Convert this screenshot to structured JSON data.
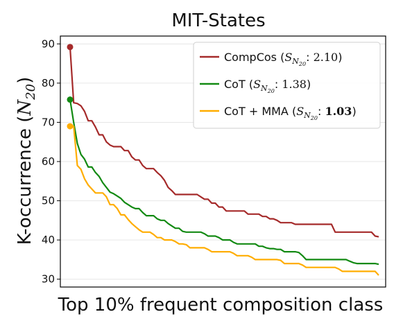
{
  "chart_data": {
    "type": "line",
    "title": "MIT-States",
    "xlabel": "Top 10% frequent composition class",
    "ylabel": "K-occurrence (N20)",
    "ylabel_main": "K-occurrence (",
    "ylabel_var": "N",
    "ylabel_sub": "20",
    "ylabel_end": ")",
    "ylim": [
      28,
      92
    ],
    "yticks": [
      30,
      40,
      50,
      60,
      70,
      80,
      90
    ],
    "grid": true,
    "legend_position": "top-right",
    "series": [
      {
        "name": "CompCos",
        "legend_prefix": "CompCos (",
        "score": "2.10",
        "score_bold": false,
        "color": "#a52a2a",
        "values": [
          89.2,
          75,
          74.8,
          74.2,
          72.8,
          70.4,
          70.4,
          68.8,
          66.8,
          66.8,
          65,
          64.2,
          63.8,
          63.8,
          63.8,
          62.8,
          62.8,
          61.2,
          60.4,
          60.4,
          59,
          58.2,
          58.2,
          58.2,
          57.2,
          56.4,
          55.2,
          53.4,
          52.6,
          51.6,
          51.6,
          51.6,
          51.6,
          51.6,
          51.6,
          51.6,
          51,
          50.4,
          50.4,
          49.4,
          49.4,
          48.4,
          48.4,
          47.4,
          47.4,
          47.4,
          47.4,
          47.4,
          47.4,
          46.6,
          46.6,
          46.6,
          46.6,
          46,
          46,
          45.4,
          45.4,
          45,
          44.4,
          44.4,
          44.4,
          44.4,
          44,
          44,
          44,
          44,
          44,
          44,
          44,
          44,
          44,
          44,
          44,
          42,
          42,
          42,
          42,
          42,
          42,
          42,
          42,
          42,
          42,
          42,
          41,
          40.8
        ]
      },
      {
        "name": "CoT",
        "legend_prefix": "CoT (",
        "score": "1.38",
        "score_bold": false,
        "color": "#138a13",
        "values": [
          75.8,
          70,
          64.6,
          61.8,
          60.6,
          58.6,
          58.6,
          57.2,
          56.2,
          54.6,
          53.4,
          52.2,
          51.8,
          51.2,
          50.6,
          49.6,
          49,
          48.4,
          48,
          48,
          47,
          46.2,
          46.2,
          46.2,
          45.4,
          45,
          45,
          44.2,
          43.6,
          43,
          43,
          42.2,
          42,
          42,
          42,
          42,
          42,
          41.6,
          41,
          41,
          41,
          40.6,
          40,
          40,
          40,
          39.4,
          39,
          39,
          39,
          39,
          39,
          39,
          38.4,
          38.4,
          38,
          37.8,
          37.8,
          37.6,
          37.6,
          37,
          37,
          37,
          37,
          36.8,
          36,
          35,
          35,
          35,
          35,
          35,
          35,
          35,
          35,
          35,
          35,
          35,
          35,
          34.6,
          34.2,
          34,
          34,
          34,
          34,
          34,
          34,
          33.8
        ]
      },
      {
        "name": "CoT + MMA",
        "legend_prefix": "CoT + MMA (",
        "score": "1.03",
        "score_bold": true,
        "color": "#ffad00",
        "values": [
          69,
          69,
          59,
          58,
          55.6,
          54,
          53,
          52,
          52,
          52,
          51,
          49,
          49,
          48,
          46.4,
          46.4,
          45.2,
          44.2,
          43.4,
          42.6,
          42,
          42,
          42,
          41.4,
          40.6,
          40.6,
          40,
          40,
          40,
          39.6,
          39,
          39,
          38.8,
          38,
          38,
          38,
          38,
          38,
          37.6,
          37,
          37,
          37,
          37,
          37,
          37,
          36.6,
          36,
          36,
          36,
          36,
          35.6,
          35,
          35,
          35,
          35,
          35,
          35,
          35,
          34.8,
          34,
          34,
          34,
          34,
          34,
          33.6,
          33,
          33,
          33,
          33,
          33,
          33,
          33,
          33,
          33,
          32.6,
          32,
          32,
          32,
          32,
          32,
          32,
          32,
          32,
          32,
          32,
          31
        ]
      }
    ],
    "legend_sub_var": "S",
    "legend_sub_N": "N",
    "legend_sub_20": "20"
  }
}
